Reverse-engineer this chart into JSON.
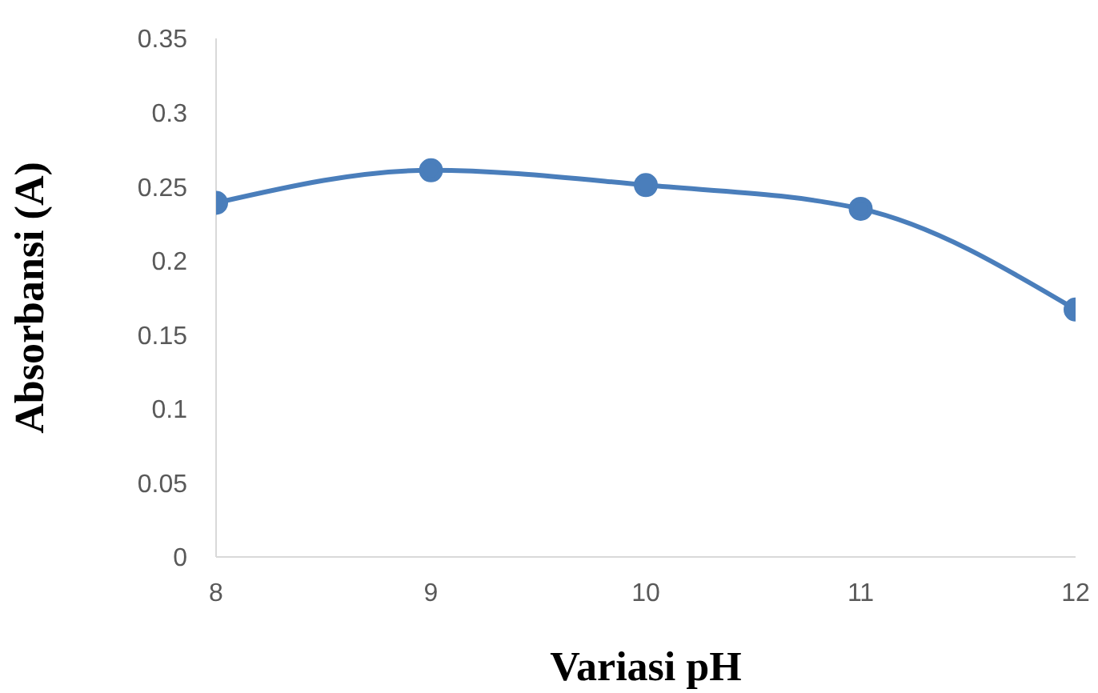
{
  "chart_data": {
    "type": "line",
    "xlabel": "Variasi pH",
    "ylabel": "Absorbansi (A)",
    "x": [
      8,
      9,
      10,
      11,
      12
    ],
    "series": [
      {
        "color": "#4a7ebb",
        "values": [
          0.239,
          0.261,
          0.251,
          0.235,
          0.167
        ]
      }
    ],
    "xlim": [
      8,
      12
    ],
    "xticks": [
      8,
      9,
      10,
      11,
      12
    ],
    "ylim": [
      0,
      0.35
    ],
    "yticks": [
      0,
      0.05,
      0.1,
      0.15,
      0.2,
      0.25,
      0.3,
      0.35
    ],
    "marker": "circle",
    "line_style": "solid",
    "grid": false,
    "legend": false
  }
}
